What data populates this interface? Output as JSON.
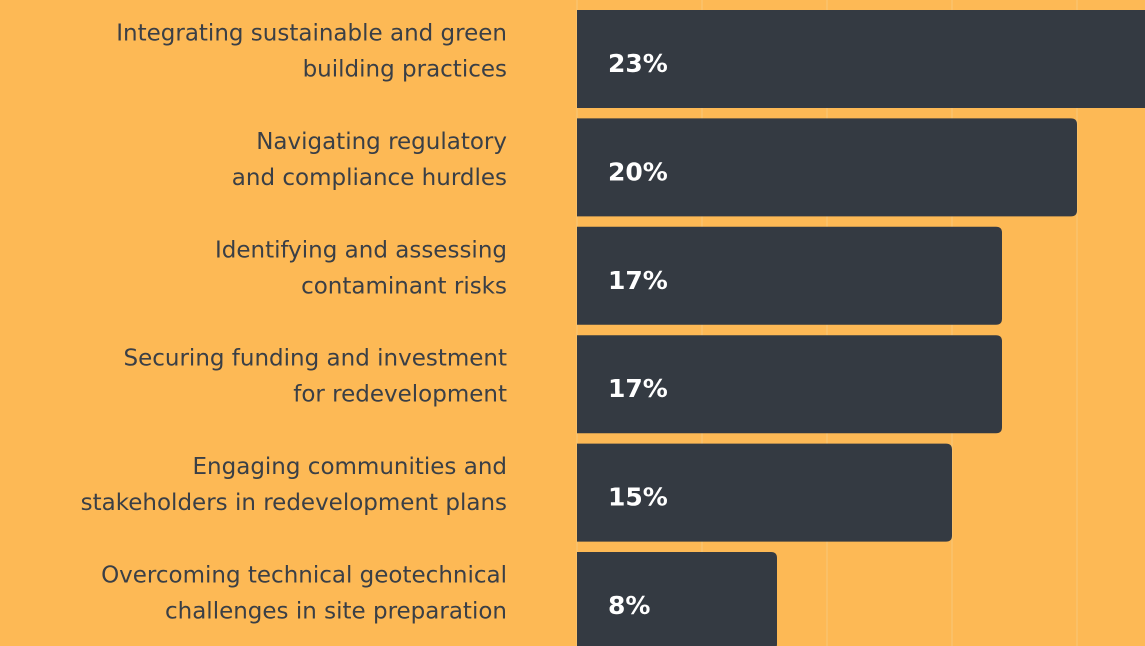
{
  "chart_data": {
    "type": "barh",
    "categories": [
      [
        "Integrating sustainable and green",
        "building practices"
      ],
      [
        "Navigating regulatory",
        "and compliance hurdles"
      ],
      [
        "Identifying and assessing",
        "contaminant risks"
      ],
      [
        "Securing funding and investment",
        "for redevelopment"
      ],
      [
        "Engaging communities and",
        "stakeholders in redevelopment plans"
      ],
      [
        "Overcoming technical geotechnical",
        "challenges in site preparation"
      ]
    ],
    "values": [
      23,
      20,
      17,
      17,
      15,
      8
    ],
    "value_labels": [
      "23%",
      "20%",
      "17%",
      "17%",
      "15%",
      "8%"
    ],
    "color": "#343a42",
    "background": "#fdb955",
    "xlim": [
      0,
      22.72
    ],
    "xticks": [
      0,
      5,
      10,
      15,
      20
    ],
    "grid": true
  }
}
